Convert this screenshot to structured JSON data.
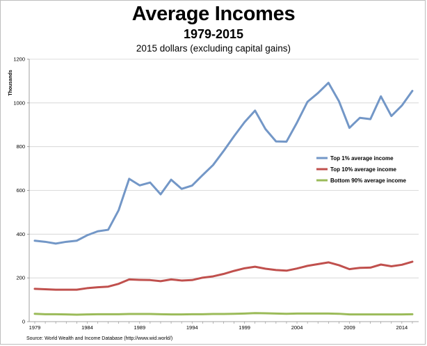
{
  "header": {
    "title": "Average Incomes",
    "subtitle": "1979-2015",
    "note": "2015 dollars (excluding capital gains)"
  },
  "source": "Source: World Wealth and Income Database (http://www.wid.world/)",
  "colors": {
    "top1": "#7397c7",
    "top10": "#c0504d",
    "bottom90": "#9bbb59",
    "gridline": "#d0d0d0",
    "axis": "#888888"
  },
  "chart_data": {
    "type": "line",
    "title": "Average Incomes",
    "subtitle": "1979-2015",
    "ylabel": "Thousands",
    "xlabel": "",
    "ylim": [
      0,
      1200
    ],
    "yticks": [
      0,
      200,
      400,
      600,
      800,
      1000,
      1200
    ],
    "xticks": [
      1979,
      1984,
      1989,
      1994,
      1999,
      2004,
      2009,
      2014
    ],
    "grid": "horizontal",
    "legend_position": "right",
    "x": [
      1979,
      1980,
      1981,
      1982,
      1983,
      1984,
      1985,
      1986,
      1987,
      1988,
      1989,
      1990,
      1991,
      1992,
      1993,
      1994,
      1995,
      1996,
      1997,
      1998,
      1999,
      2000,
      2001,
      2002,
      2003,
      2004,
      2005,
      2006,
      2007,
      2008,
      2009,
      2010,
      2011,
      2012,
      2013,
      2014,
      2015
    ],
    "series": [
      {
        "name": "Top 1% average income",
        "color": "#7397c7",
        "values": [
          370,
          365,
          357,
          365,
          370,
          395,
          413,
          420,
          510,
          653,
          623,
          636,
          582,
          649,
          607,
          622,
          670,
          716,
          780,
          848,
          912,
          965,
          880,
          824,
          823,
          910,
          1005,
          1045,
          1092,
          1008,
          886,
          932,
          926,
          1030,
          940,
          988,
          1055
        ]
      },
      {
        "name": "Top 10% average income",
        "color": "#c0504d",
        "values": [
          150,
          148,
          146,
          146,
          146,
          153,
          157,
          160,
          173,
          193,
          191,
          190,
          185,
          193,
          188,
          190,
          201,
          207,
          218,
          232,
          244,
          251,
          242,
          236,
          233,
          243,
          255,
          263,
          271,
          258,
          240,
          246,
          247,
          261,
          253,
          260,
          274
        ]
      },
      {
        "name": "Bottom 90% average income",
        "color": "#9bbb59",
        "values": [
          36,
          34,
          34,
          33,
          32,
          33,
          34,
          34,
          34,
          35,
          35,
          35,
          34,
          33,
          33,
          34,
          34,
          35,
          35,
          36,
          37,
          39,
          38,
          37,
          36,
          37,
          37,
          37,
          37,
          36,
          33,
          33,
          33,
          33,
          33,
          33,
          34
        ]
      }
    ]
  }
}
